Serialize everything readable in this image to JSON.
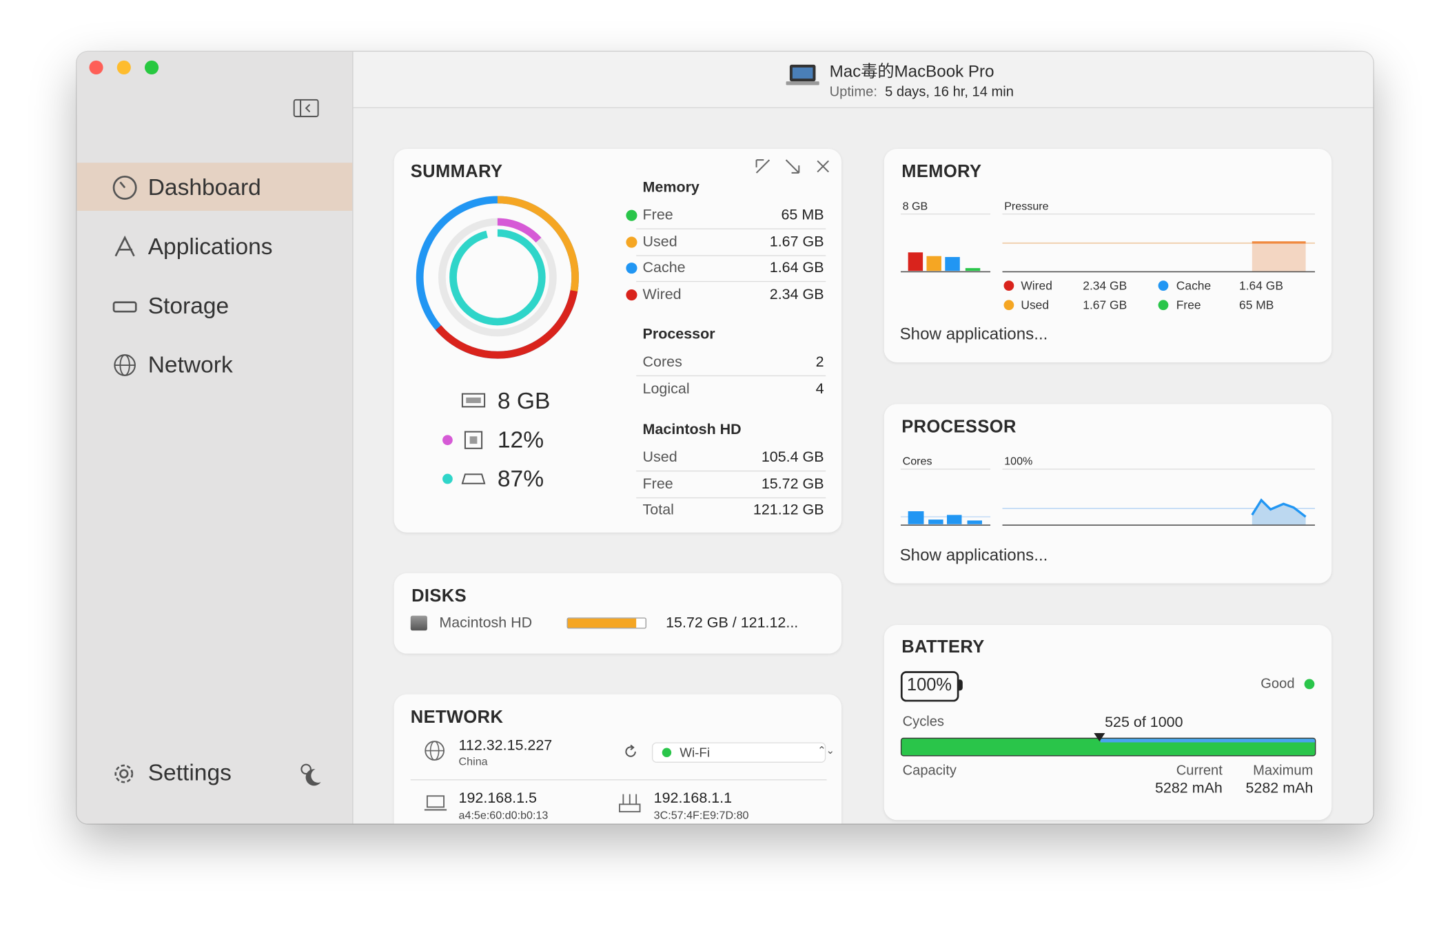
{
  "header": {
    "title": "Mac毒的MacBook Pro",
    "uptime_label": "Uptime:",
    "uptime": "5 days, 16 hr, 14 min"
  },
  "sidebar": {
    "items": [
      "Dashboard",
      "Applications",
      "Storage",
      "Network"
    ],
    "settings": "Settings"
  },
  "summary": {
    "title": "SUMMARY",
    "stats": [
      "8 GB",
      "12%",
      "87%"
    ],
    "memory": {
      "heading": "Memory",
      "rows": [
        [
          "Free",
          "65 MB"
        ],
        [
          "Used",
          "1.67 GB"
        ],
        [
          "Cache",
          "1.64 GB"
        ],
        [
          "Wired",
          "2.34 GB"
        ]
      ]
    },
    "processor": {
      "heading": "Processor",
      "rows": [
        [
          "Cores",
          "2"
        ],
        [
          "Logical",
          "4"
        ]
      ]
    },
    "disk": {
      "heading": "Macintosh HD",
      "rows": [
        [
          "Used",
          "105.4 GB"
        ],
        [
          "Free",
          "15.72 GB"
        ],
        [
          "Total",
          "121.12 GB"
        ]
      ]
    }
  },
  "disks": {
    "title": "DISKS",
    "name": "Macintosh HD",
    "usage": "15.72 GB / 121.12..."
  },
  "network": {
    "title": "NETWORK",
    "public_ip": "112.32.15.227",
    "country": "China",
    "interface": "Wi-Fi",
    "local_ip": "192.168.1.5",
    "local_mac": "a4:5e:60:d0:b0:13",
    "router_ip": "192.168.1.1",
    "router_mac": "3C:57:4F:E9:7D:80"
  },
  "memory": {
    "title": "MEMORY",
    "capacity": "8 GB",
    "pressure": "Pressure",
    "legend": [
      [
        "Wired",
        "2.34 GB"
      ],
      [
        "Cache",
        "1.64 GB"
      ],
      [
        "Used",
        "1.67 GB"
      ],
      [
        "Free",
        "65 MB"
      ]
    ],
    "link": "Show applications..."
  },
  "processor": {
    "title": "PROCESSOR",
    "cores": "Cores",
    "max": "100%",
    "link": "Show applications..."
  },
  "battery": {
    "title": "BATTERY",
    "level": "100%",
    "health": "Good",
    "cycles_label": "Cycles",
    "cycles": "525 of 1000",
    "capacity_label": "Capacity",
    "current_label": "Current",
    "maximum_label": "Maximum",
    "current": "5282 mAh",
    "maximum": "5282 mAh"
  }
}
